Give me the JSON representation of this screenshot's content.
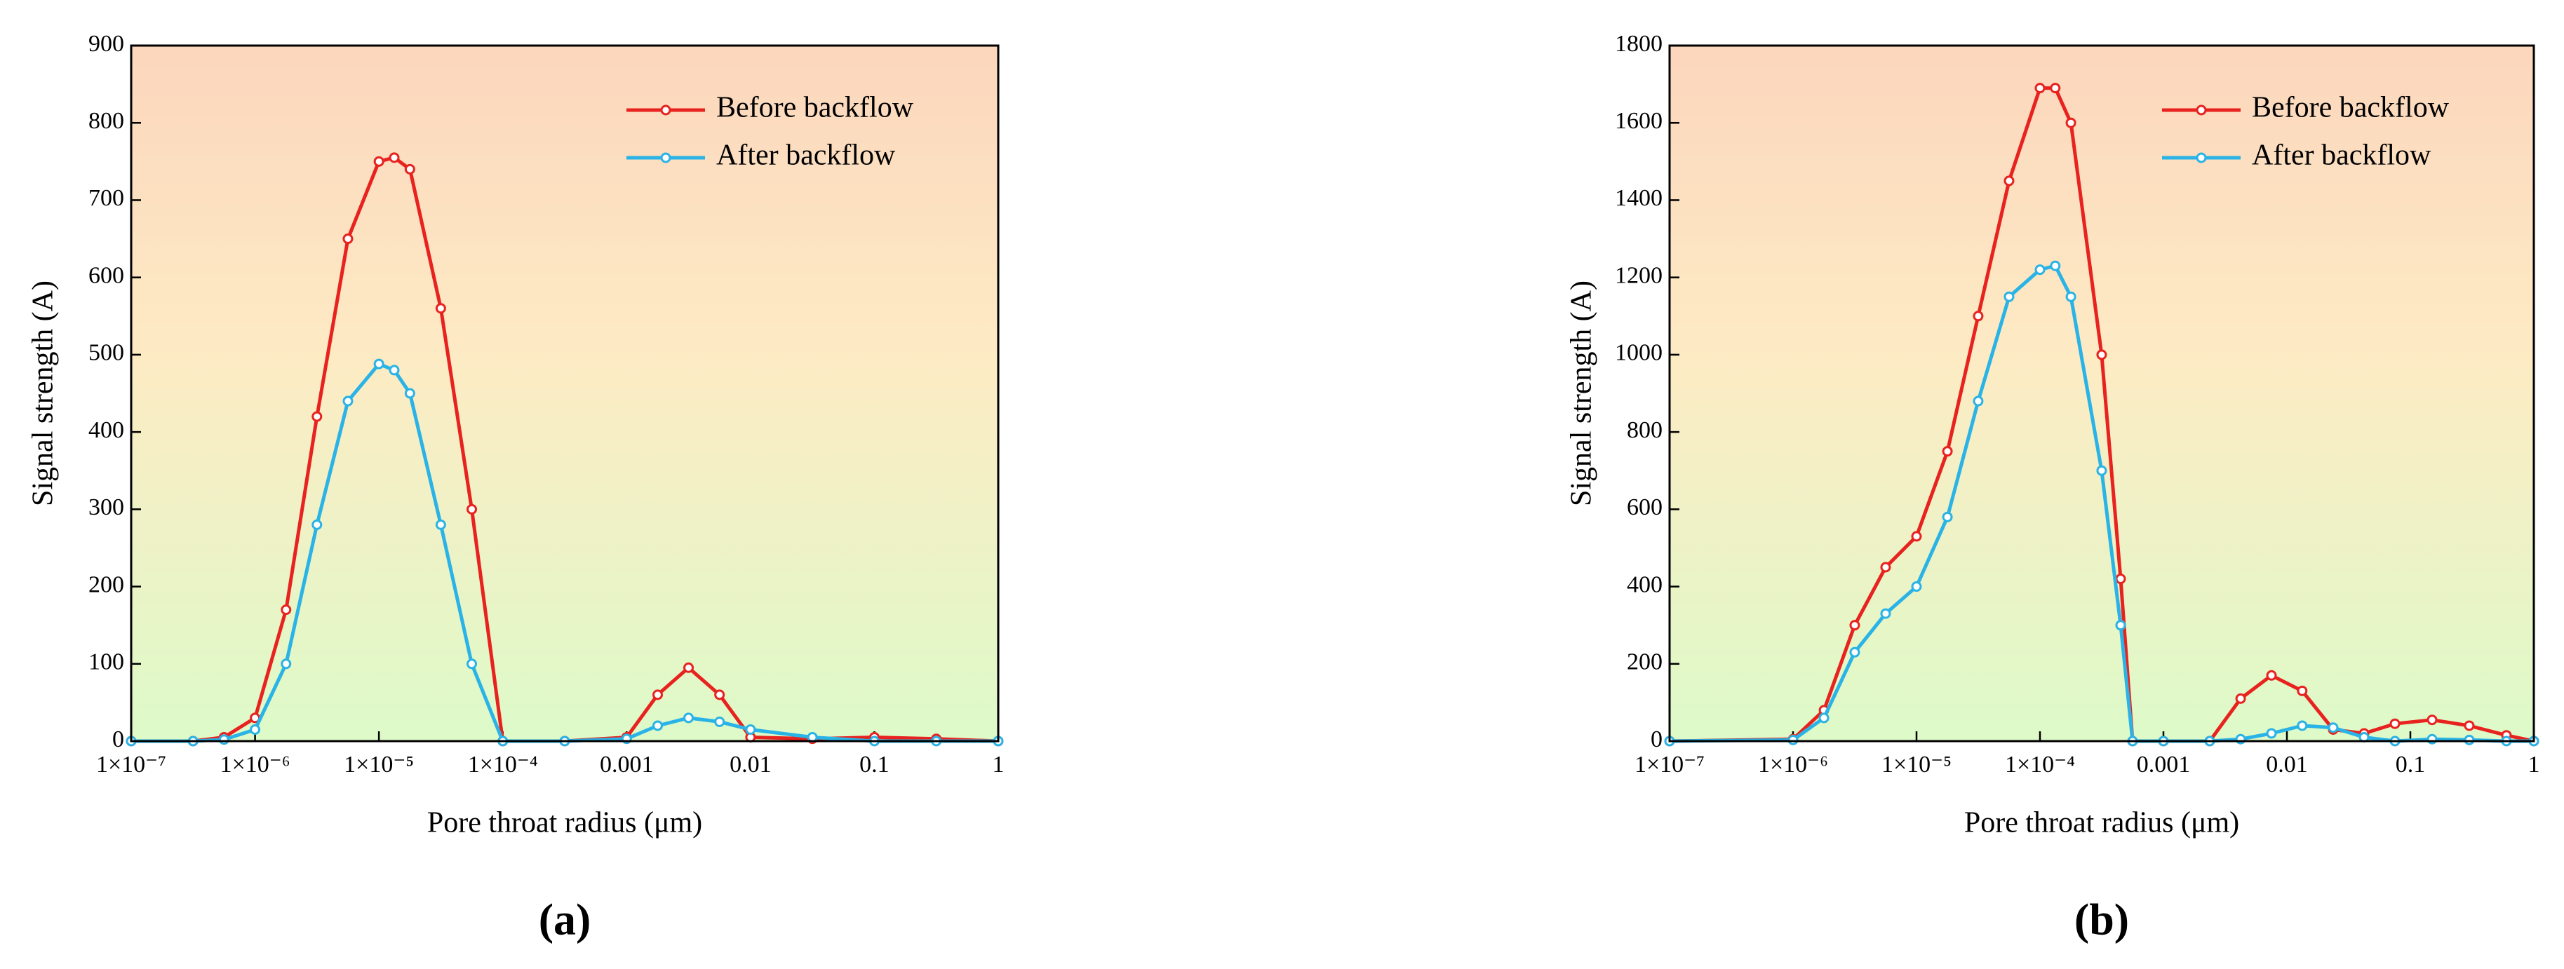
{
  "chart_data": [
    {
      "type": "line",
      "caption": "(a)",
      "xlabel": "Pore throat radius (μm)",
      "ylabel": "Signal strength (A)",
      "xscale": "log",
      "legend": "upper right",
      "x": [
        1e-07,
        3.16e-07,
        5.62e-07,
        1e-06,
        1.78e-06,
        3.16e-06,
        5.62e-06,
        1e-05,
        1.33e-05,
        1.78e-05,
        3.16e-05,
        5.62e-05,
        0.0001,
        0.000316,
        0.001,
        0.00178,
        0.00316,
        0.00562,
        0.01,
        0.0316,
        0.1,
        0.316,
        1
      ],
      "series": [
        {
          "name": "Before backflow",
          "color": "#e8231f",
          "values": [
            0,
            0,
            5,
            30,
            170,
            420,
            650,
            750,
            755,
            740,
            560,
            300,
            0,
            0,
            5,
            60,
            95,
            60,
            5,
            3,
            5,
            3,
            0
          ]
        },
        {
          "name": "After backflow",
          "color": "#2ab3e6",
          "values": [
            0,
            0,
            2,
            15,
            100,
            280,
            440,
            488,
            480,
            450,
            280,
            100,
            0,
            0,
            3,
            20,
            30,
            25,
            15,
            5,
            0,
            0,
            0
          ]
        }
      ],
      "xlim": [
        1e-07,
        1
      ],
      "xticks": [
        {
          "value": 1e-07,
          "label": "1×10⁻⁷"
        },
        {
          "value": 1e-06,
          "label": "1×10⁻⁶"
        },
        {
          "value": 1e-05,
          "label": "1×10⁻⁵"
        },
        {
          "value": 0.0001,
          "label": "1×10⁻⁴"
        },
        0.001,
        0.01,
        0.1,
        1
      ],
      "ylim": [
        0,
        900
      ],
      "yticks": [
        0,
        100,
        200,
        300,
        400,
        500,
        600,
        700,
        800,
        900
      ]
    },
    {
      "type": "line",
      "caption": "(b)",
      "xlabel": "Pore throat radius (μm)",
      "ylabel": "Signal strength (A)",
      "xscale": "log",
      "legend": "upper right",
      "x": [
        1e-07,
        1e-06,
        1.78e-06,
        3.16e-06,
        5.62e-06,
        1e-05,
        1.78e-05,
        3.16e-05,
        5.62e-05,
        0.0001,
        0.000133,
        0.000178,
        0.000316,
        0.00045,
        0.000562,
        0.001,
        0.00237,
        0.00422,
        0.0075,
        0.0133,
        0.0237,
        0.0422,
        0.075,
        0.15,
        0.3,
        0.6,
        1
      ],
      "series": [
        {
          "name": "Before backflow",
          "color": "#e8231f",
          "values": [
            0,
            5,
            80,
            300,
            450,
            530,
            750,
            1100,
            1450,
            1690,
            1690,
            1600,
            1000,
            420,
            0,
            0,
            0,
            110,
            170,
            130,
            30,
            20,
            45,
            55,
            40,
            15,
            0
          ]
        },
        {
          "name": "After backflow",
          "color": "#2ab3e6",
          "values": [
            0,
            3,
            60,
            230,
            330,
            400,
            580,
            880,
            1150,
            1220,
            1230,
            1150,
            700,
            300,
            0,
            0,
            0,
            5,
            20,
            40,
            35,
            10,
            0,
            5,
            3,
            0,
            0
          ]
        }
      ],
      "xlim": [
        1e-07,
        1
      ],
      "xticks": [
        {
          "value": 1e-07,
          "label": "1×10⁻⁷"
        },
        {
          "value": 1e-06,
          "label": "1×10⁻⁶"
        },
        {
          "value": 1e-05,
          "label": "1×10⁻⁵"
        },
        {
          "value": 0.0001,
          "label": "1×10⁻⁴"
        },
        0.001,
        0.01,
        0.1,
        1
      ],
      "ylim": [
        0,
        1800
      ],
      "yticks": [
        0,
        200,
        400,
        600,
        800,
        1000,
        1200,
        1400,
        1600,
        1800
      ]
    }
  ]
}
